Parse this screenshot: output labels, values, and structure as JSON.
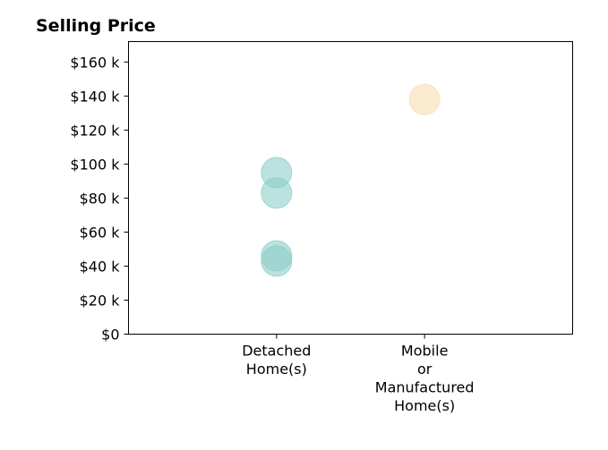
{
  "chart_data": {
    "type": "scatter",
    "title": "Selling Price",
    "xlabel": "",
    "ylabel": "",
    "categories": [
      [
        "Detached",
        "Home(s)"
      ],
      [
        "Mobile",
        "or",
        "Manufactured",
        "Home(s)"
      ]
    ],
    "ylim": [
      0,
      172000
    ],
    "yticks": [
      0,
      20000,
      40000,
      60000,
      80000,
      100000,
      120000,
      140000,
      160000
    ],
    "ytick_labels": [
      "$0",
      "$20 k",
      "$40 k",
      "$60 k",
      "$80 k",
      "$100 k",
      "$120 k",
      "$140 k",
      "$160 k"
    ],
    "grid": false,
    "legend": "none",
    "points": [
      {
        "category": 0,
        "y": 95000,
        "color": "#8ecfc9"
      },
      {
        "category": 0,
        "y": 83000,
        "color": "#8ecfc9"
      },
      {
        "category": 0,
        "y": 46000,
        "color": "#8ecfc9"
      },
      {
        "category": 0,
        "y": 43000,
        "color": "#8ecfc9"
      },
      {
        "category": 1,
        "y": 138000,
        "color": "#f7ddb0"
      }
    ]
  }
}
